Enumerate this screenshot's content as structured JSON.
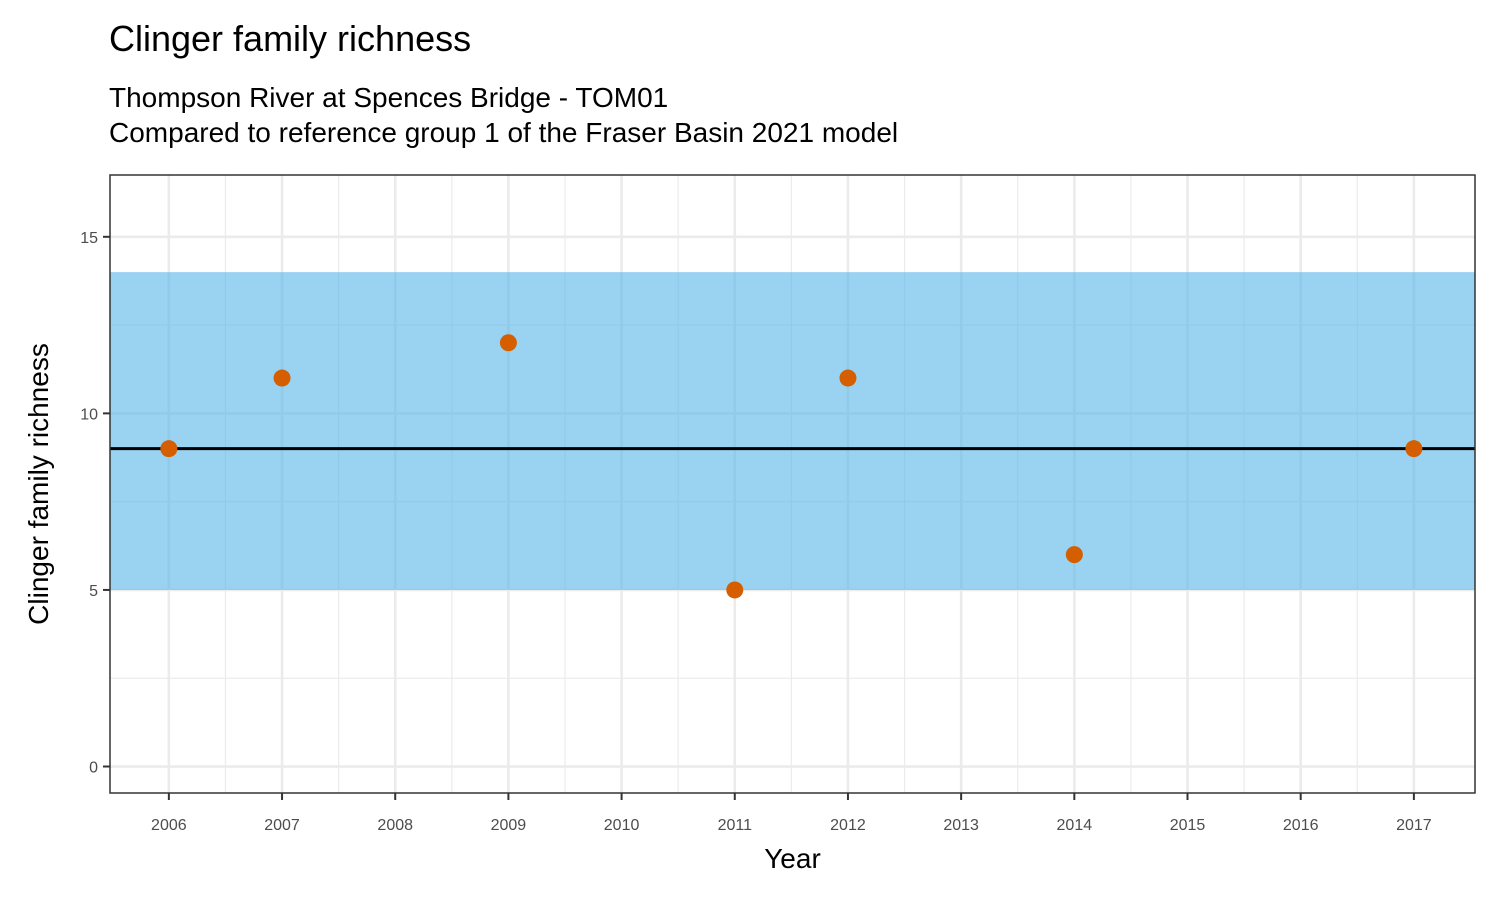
{
  "chart_data": {
    "type": "scatter",
    "title": "Clinger family richness",
    "subtitle": [
      "Thompson River at Spences Bridge - TOM01",
      "Compared to reference group 1 of the Fraser Basin 2021 model"
    ],
    "xlabel": "Year",
    "ylabel": "Clinger family richness",
    "x_ticks": [
      2006,
      2007,
      2008,
      2009,
      2010,
      2011,
      2012,
      2013,
      2014,
      2015,
      2016,
      2017
    ],
    "y_ticks": [
      0,
      5,
      10,
      15
    ],
    "xlim": [
      2005.48,
      2017.54
    ],
    "ylim": [
      -0.75,
      16.75
    ],
    "grid": true,
    "points": [
      {
        "x": 2006,
        "y": 9
      },
      {
        "x": 2007,
        "y": 11
      },
      {
        "x": 2009,
        "y": 12
      },
      {
        "x": 2011,
        "y": 5
      },
      {
        "x": 2012,
        "y": 11
      },
      {
        "x": 2014,
        "y": 6
      },
      {
        "x": 2017,
        "y": 9
      }
    ],
    "reference_band": {
      "low": 5,
      "high": 14
    },
    "reference_line": 9,
    "colors": {
      "points": "#d55e00",
      "band": "#56b4e9",
      "line": "#000000"
    }
  }
}
